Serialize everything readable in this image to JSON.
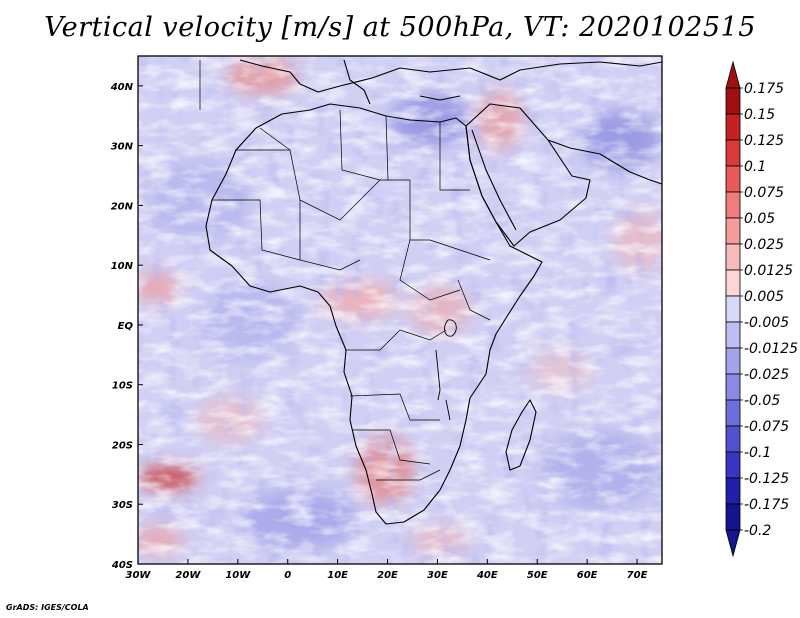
{
  "title": "Vertical velocity [m/s] at 500hPa, VT: 2020102515",
  "footer": "GrADS: IGES/COLA",
  "map": {
    "region": "Africa",
    "variable": "Vertical velocity",
    "units": "m/s",
    "level": "500hPa",
    "valid_time": "2020102515",
    "lon_range": [
      -30,
      75
    ],
    "lat_range": [
      -40,
      45
    ],
    "lon_ticks": [
      {
        "value": -30,
        "label": "30W"
      },
      {
        "value": -20,
        "label": "20W"
      },
      {
        "value": -10,
        "label": "10W"
      },
      {
        "value": 0,
        "label": "0"
      },
      {
        "value": 10,
        "label": "10E"
      },
      {
        "value": 20,
        "label": "20E"
      },
      {
        "value": 30,
        "label": "30E"
      },
      {
        "value": 40,
        "label": "40E"
      },
      {
        "value": 50,
        "label": "50E"
      },
      {
        "value": 60,
        "label": "60E"
      },
      {
        "value": 70,
        "label": "70E"
      }
    ],
    "lat_ticks": [
      {
        "value": 40,
        "label": "40N"
      },
      {
        "value": 30,
        "label": "30N"
      },
      {
        "value": 20,
        "label": "20N"
      },
      {
        "value": 10,
        "label": "10N"
      },
      {
        "value": 0,
        "label": "EQ"
      },
      {
        "value": -10,
        "label": "10S"
      },
      {
        "value": -20,
        "label": "20S"
      },
      {
        "value": -30,
        "label": "30S"
      },
      {
        "value": -40,
        "label": "40S"
      }
    ]
  },
  "colorbar": {
    "levels": [
      {
        "label": "0.175",
        "color": "#a11010"
      },
      {
        "label": "0.15",
        "color": "#c42222"
      },
      {
        "label": "0.125",
        "color": "#da3a3a"
      },
      {
        "label": "0.1",
        "color": "#e85a5a"
      },
      {
        "label": "0.075",
        "color": "#f07c7c"
      },
      {
        "label": "0.05",
        "color": "#f59c9c"
      },
      {
        "label": "0.025",
        "color": "#f9baba"
      },
      {
        "label": "0.0125",
        "color": "#fcd6d6"
      },
      {
        "label": "0.005",
        "color": "#ffffff"
      },
      {
        "label": "-0.005",
        "color": "#d8d8f8"
      },
      {
        "label": "-0.0125",
        "color": "#bebef2"
      },
      {
        "label": "-0.025",
        "color": "#a4a4ec"
      },
      {
        "label": "-0.05",
        "color": "#8a8ae4"
      },
      {
        "label": "-0.075",
        "color": "#6e6edc"
      },
      {
        "label": "-0.1",
        "color": "#5252d0"
      },
      {
        "label": "-0.125",
        "color": "#3636c0"
      },
      {
        "label": "-0.175",
        "color": "#2020aa"
      },
      {
        "label": "-0.2",
        "color": "#14148c"
      }
    ],
    "top_arrow_color": "#a11010",
    "bottom_arrow_color": "#14148c"
  },
  "colors": {
    "ocean_base": "#d0cff4",
    "land_outline": "#000000"
  }
}
